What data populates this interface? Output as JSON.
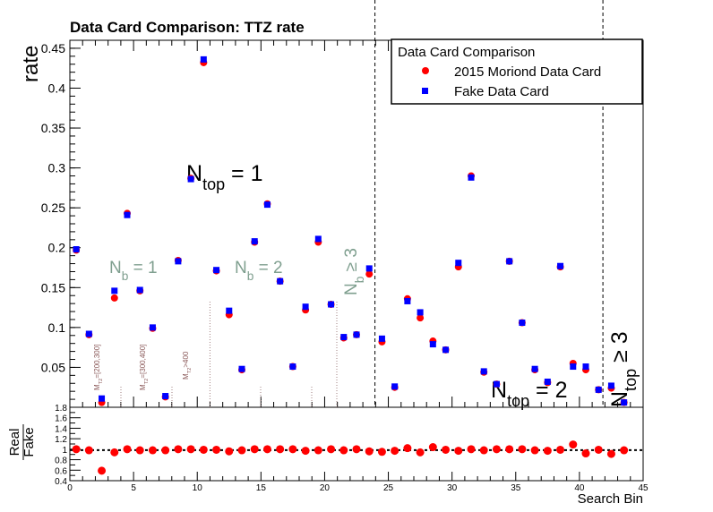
{
  "chart_data": [
    {
      "type": "scatter",
      "title": "Data Card Comparison: TTZ rate",
      "ylabel": "rate",
      "xlim": [
        0,
        45
      ],
      "ylim": [
        0,
        0.46
      ],
      "yticks": [
        "0.05",
        "0.1",
        "0.15",
        "0.2",
        "0.25",
        "0.3",
        "0.35",
        "0.4",
        "0.45"
      ],
      "legend": {
        "title": "Data Card Comparison",
        "position": "top-right",
        "entries": [
          "2015 Moriond Data Card",
          "Fake Data Card"
        ]
      },
      "colors": {
        "moriond": "#ff0000",
        "fake": "#0000ff",
        "nb_label": "#7f9f8f",
        "mt2_label": "#8b5a5a"
      },
      "series": [
        {
          "name": "2015 Moriond Data Card",
          "marker": "circle",
          "values": [
            0.197,
            0.091,
            0.006,
            0.137,
            0.243,
            0.146,
            0.099,
            0.013,
            0.184,
            0.287,
            0.432,
            0.171,
            0.116,
            0.047,
            0.207,
            0.255,
            0.158,
            0.051,
            0.122,
            0.207,
            0.129,
            0.087,
            0.091,
            0.167,
            0.082,
            0.025,
            0.136,
            0.112,
            0.083,
            0.072,
            0.176,
            0.29,
            0.044,
            0.029,
            0.183,
            0.106,
            0.047,
            0.031,
            0.176,
            0.055,
            0.047,
            0.022,
            0.024,
            0.006
          ]
        },
        {
          "name": "Fake Data Card",
          "marker": "square",
          "values": [
            0.198,
            0.092,
            0.011,
            0.146,
            0.241,
            0.147,
            0.1,
            0.014,
            0.183,
            0.286,
            0.436,
            0.172,
            0.121,
            0.048,
            0.208,
            0.254,
            0.158,
            0.051,
            0.126,
            0.211,
            0.129,
            0.088,
            0.091,
            0.174,
            0.086,
            0.026,
            0.133,
            0.119,
            0.079,
            0.072,
            0.181,
            0.288,
            0.045,
            0.029,
            0.183,
            0.106,
            0.048,
            0.032,
            0.177,
            0.051,
            0.051,
            0.022,
            0.027,
            0.006
          ]
        }
      ],
      "annotations": {
        "ntop1": "N_top = 1",
        "ntop2": "N_top = 2",
        "ntop3": "N_top ≥ 3",
        "nb1": "N_b = 1",
        "nb2": "N_b = 2",
        "nb3": "N_b ≥ 3",
        "mt2_1": "M_T2=[200,300]",
        "mt2_2": "M_T2=[300,400]",
        "mt2_3": "M_T2>400"
      }
    },
    {
      "type": "scatter",
      "xlabel": "Search Bin",
      "ylabel_num": "Real",
      "ylabel_den": "Fake",
      "xlim": [
        0,
        45
      ],
      "ylim": [
        0.4,
        1.8
      ],
      "xticks": [
        "0",
        "5",
        "10",
        "15",
        "20",
        "25",
        "30",
        "35",
        "40",
        "45"
      ],
      "yticks": [
        "0.4",
        "0.6",
        "0.8",
        "1",
        "1.2",
        "1.4",
        "1.6",
        "1.8"
      ],
      "reference_line": 1,
      "series": [
        {
          "name": "ratio",
          "values": [
            1.0,
            0.98,
            0.59,
            0.94,
            1.0,
            0.98,
            0.98,
            0.98,
            1.0,
            1.0,
            0.99,
            0.99,
            0.96,
            0.98,
            1.0,
            1.0,
            1.0,
            1.0,
            0.97,
            0.98,
            1.0,
            0.98,
            1.0,
            0.96,
            0.95,
            0.97,
            1.02,
            0.94,
            1.04,
            0.99,
            0.97,
            1.0,
            0.98,
            1.0,
            1.0,
            1.0,
            0.98,
            0.97,
            0.99,
            1.09,
            0.92,
            0.99,
            0.91,
            0.98
          ]
        }
      ]
    }
  ]
}
